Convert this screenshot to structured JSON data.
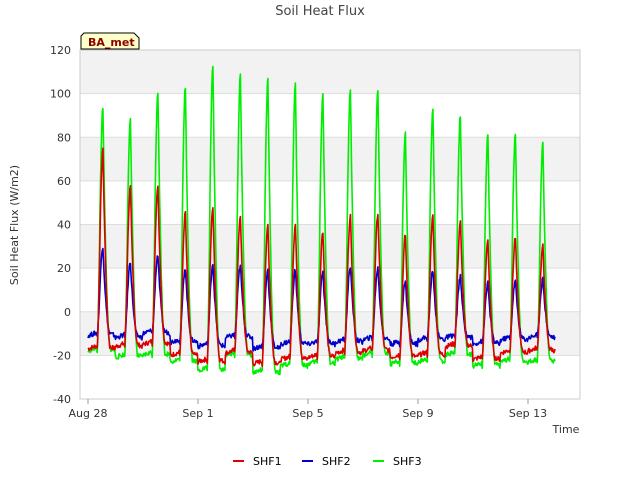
{
  "chart_data": {
    "type": "line",
    "title": "Soil Heat Flux",
    "xlabel": "Time",
    "ylabel": "Soil Heat Flux (W/m2)",
    "badge": "BA_met",
    "ylim": [
      -40,
      120
    ],
    "yticks": [
      -40,
      -20,
      0,
      20,
      40,
      60,
      80,
      100,
      120
    ],
    "x_unit": "days since Aug 28",
    "xlim": [
      0,
      18
    ],
    "xticks": [
      {
        "x": 0,
        "label": "Aug 28"
      },
      {
        "x": 4,
        "label": "Sep 1"
      },
      {
        "x": 8,
        "label": "Sep 5"
      },
      {
        "x": 12,
        "label": "Sep 9"
      },
      {
        "x": 16,
        "label": "Sep 13"
      }
    ],
    "series": [
      {
        "name": "SHF1",
        "color": "#dd0000",
        "daily_peaks": [
          74,
          57,
          58,
          45,
          48,
          44,
          40,
          40,
          37,
          44,
          45,
          35,
          44,
          41,
          33,
          34,
          30
        ],
        "daily_minima": [
          -17,
          -16,
          -15,
          -20,
          -23,
          -19,
          -24,
          -22,
          -21,
          -19,
          -18,
          -21,
          -20,
          -16,
          -22,
          -19,
          -18
        ]
      },
      {
        "name": "SHF2",
        "color": "#0000cc",
        "daily_peaks": [
          30,
          23,
          26,
          20,
          22,
          21,
          19,
          19,
          18,
          21,
          20,
          14,
          19,
          16,
          13,
          14,
          15
        ],
        "daily_minima": [
          -11,
          -12,
          -10,
          -14,
          -16,
          -12,
          -17,
          -15,
          -15,
          -14,
          -13,
          -15,
          -13,
          -12,
          -15,
          -13,
          -12
        ]
      },
      {
        "name": "SHF3",
        "color": "#00ee00",
        "daily_peaks": [
          94,
          89,
          101,
          103,
          113,
          108,
          106,
          104,
          100,
          102,
          102,
          82,
          93,
          90,
          81,
          82,
          77
        ],
        "daily_minima": [
          -18,
          -21,
          -20,
          -23,
          -27,
          -20,
          -28,
          -25,
          -24,
          -22,
          -20,
          -24,
          -23,
          -20,
          -25,
          -23,
          -23
        ]
      }
    ]
  }
}
